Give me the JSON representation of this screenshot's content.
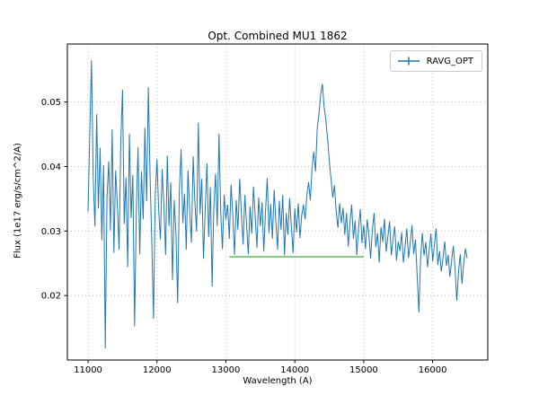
{
  "chart_data": {
    "type": "line",
    "title": "Opt. Combined MU1 1862",
    "xlabel": "Wavelength (A)",
    "ylabel": "Flux (1e17 erg/s/cm^2/A)",
    "xlim": [
      10700,
      16800
    ],
    "ylim": [
      0.01,
      0.059
    ],
    "xticks": [
      11000,
      12000,
      13000,
      14000,
      15000,
      16000
    ],
    "yticks": [
      0.02,
      0.03,
      0.04,
      0.05
    ],
    "grid": true,
    "grid_style": "dotted",
    "grid_color": "#b0b0b0",
    "axes_color": "#000000",
    "legend_position": "upper right",
    "series": [
      {
        "name": "RAVG_OPT",
        "color": "#1f77b4",
        "marker": "plus-errorbar",
        "x_start": 11000,
        "x_step": 25,
        "values": [
          0.033,
          0.0452,
          0.0565,
          0.0383,
          0.0307,
          0.0481,
          0.0335,
          0.0429,
          0.0286,
          0.0402,
          0.0118,
          0.0352,
          0.0408,
          0.0301,
          0.0458,
          0.0266,
          0.0394,
          0.0342,
          0.0271,
          0.0438,
          0.0519,
          0.0311,
          0.0383,
          0.0244,
          0.0451,
          0.032,
          0.0387,
          0.0152,
          0.0328,
          0.043,
          0.0264,
          0.0392,
          0.0318,
          0.046,
          0.0346,
          0.0523,
          0.0385,
          0.0282,
          0.0164,
          0.0356,
          0.0411,
          0.0332,
          0.0287,
          0.0396,
          0.0341,
          0.0263,
          0.0417,
          0.0308,
          0.0376,
          0.0224,
          0.0348,
          0.0296,
          0.0188,
          0.0362,
          0.0427,
          0.0312,
          0.0358,
          0.0271,
          0.0394,
          0.0331,
          0.0282,
          0.0416,
          0.0345,
          0.0299,
          0.0468,
          0.0326,
          0.0381,
          0.0257,
          0.0334,
          0.0405,
          0.0291,
          0.0368,
          0.0214,
          0.0337,
          0.0389,
          0.0308,
          0.0451,
          0.0329,
          0.0272,
          0.0356,
          0.0318,
          0.0341,
          0.0288,
          0.0372,
          0.0325,
          0.0263,
          0.0348,
          0.0302,
          0.0381,
          0.0327,
          0.0279,
          0.0356,
          0.031,
          0.0264,
          0.0338,
          0.0296,
          0.0369,
          0.0323,
          0.0274,
          0.0352,
          0.0308,
          0.0345,
          0.0268,
          0.0331,
          0.0382,
          0.0297,
          0.0342,
          0.0288,
          0.0364,
          0.0315,
          0.0271,
          0.0347,
          0.0302,
          0.0356,
          0.0262,
          0.0328,
          0.0294,
          0.0351,
          0.0307,
          0.0266,
          0.0335,
          0.0298,
          0.0343,
          0.0289,
          0.0324,
          0.0341,
          0.0318,
          0.0355,
          0.0376,
          0.0348,
          0.0398,
          0.0423,
          0.0392,
          0.0458,
          0.0481,
          0.0512,
          0.0528,
          0.0493,
          0.0472,
          0.0444,
          0.0409,
          0.0381,
          0.0352,
          0.0371,
          0.0331,
          0.0305,
          0.0343,
          0.0312,
          0.0336,
          0.0294,
          0.0328,
          0.0276,
          0.0312,
          0.0341,
          0.0288,
          0.0316,
          0.0263,
          0.0305,
          0.0334,
          0.0281,
          0.0309,
          0.0272,
          0.0318,
          0.0294,
          0.0257,
          0.0302,
          0.0328,
          0.0275,
          0.0297,
          0.0251,
          0.0306,
          0.0283,
          0.0319,
          0.0268,
          0.0291,
          0.0315,
          0.0262,
          0.0288,
          0.0307,
          0.0254,
          0.0283,
          0.0269,
          0.0298,
          0.0251,
          0.0276,
          0.0304,
          0.0258,
          0.0282,
          0.0309,
          0.0264,
          0.0287,
          0.0232,
          0.0174,
          0.0256,
          0.0297,
          0.0262,
          0.0283,
          0.0244,
          0.0271,
          0.0296,
          0.0253,
          0.0278,
          0.0304,
          0.0247,
          0.0269,
          0.0237,
          0.0258,
          0.0284,
          0.0246,
          0.0263,
          0.0229,
          0.0254,
          0.0277,
          0.0241,
          0.0192,
          0.0236,
          0.0264,
          0.0218,
          0.0249,
          0.0273,
          0.0258
        ]
      },
      {
        "name": "flat-baseline-segment",
        "color": "#7fc87f",
        "x": [
          13050,
          15000
        ],
        "y": [
          0.026,
          0.026
        ]
      }
    ]
  },
  "legend": {
    "label": "RAVG_OPT",
    "line_color": "#1f77b4"
  }
}
